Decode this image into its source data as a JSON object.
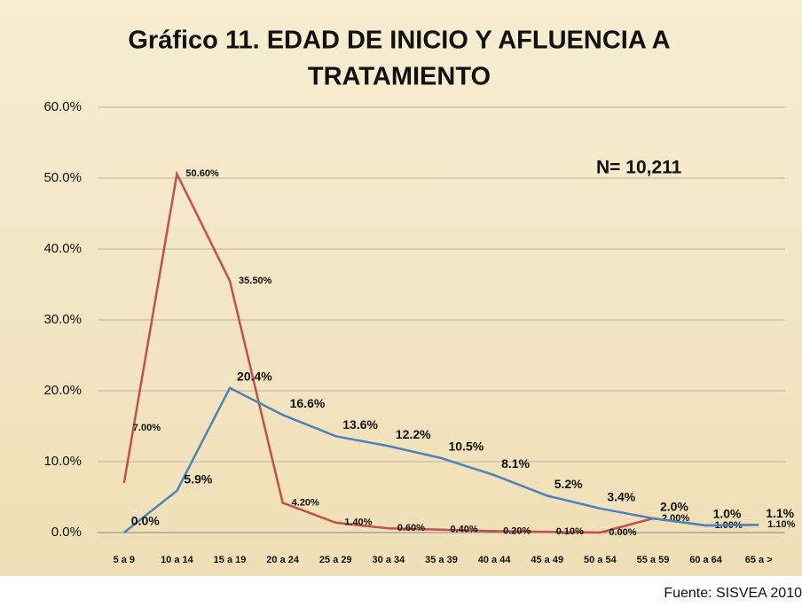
{
  "chart_data": {
    "type": "line",
    "title": [
      "Gráfico 11. EDAD DE INICIO Y AFLUENCIA A",
      "TRATAMIENTO"
    ],
    "annotations": [
      "N= 10,211",
      "Fuente: SISVEA 2010"
    ],
    "categories": [
      "5 a 9",
      "10 a 14",
      "15 a 19",
      "20 a 24",
      "25 a 29",
      "30 a 34",
      "35 a 39",
      "40 a 44",
      "45 a 49",
      "50 a 54",
      "55 a 59",
      "60 a 64",
      "65 a >"
    ],
    "series": [
      {
        "color": "#c0504d",
        "values": [
          7.0,
          50.6,
          35.5,
          4.2,
          1.4,
          0.6,
          0.4,
          0.2,
          0.1,
          0.0,
          2.0,
          1.0,
          1.1
        ],
        "value_labels": [
          "7.00%",
          "50.60%",
          "35.50%",
          "4.20%",
          "1.40%",
          "0.60%",
          "0.40%",
          "0.20%",
          "0.10%",
          "0.00%",
          "2.00%",
          "1.00%",
          "1.10%"
        ]
      },
      {
        "color": "#4f81bd",
        "values": [
          0.0,
          5.9,
          20.4,
          16.6,
          13.6,
          12.2,
          10.5,
          8.1,
          5.2,
          3.4,
          2.0,
          1.0,
          1.1
        ],
        "value_labels": [
          "0.0%",
          "5.9%",
          "20.4%",
          "16.6%",
          "13.6%",
          "12.2%",
          "10.5%",
          "8.1%",
          "5.2%",
          "3.4%",
          "2.0%",
          "1.0%",
          "1.1%"
        ]
      }
    ],
    "ylim": [
      0,
      60
    ],
    "yticks": [
      {
        "value": 0,
        "label": "0.0%"
      },
      {
        "value": 10,
        "label": "10.0%"
      },
      {
        "value": 20,
        "label": "20.0%"
      },
      {
        "value": 30,
        "label": "30.0%"
      },
      {
        "value": 40,
        "label": "40.0%"
      },
      {
        "value": 50,
        "label": "50.0%"
      },
      {
        "value": 60,
        "label": "60.0%"
      }
    ],
    "grid": true
  }
}
